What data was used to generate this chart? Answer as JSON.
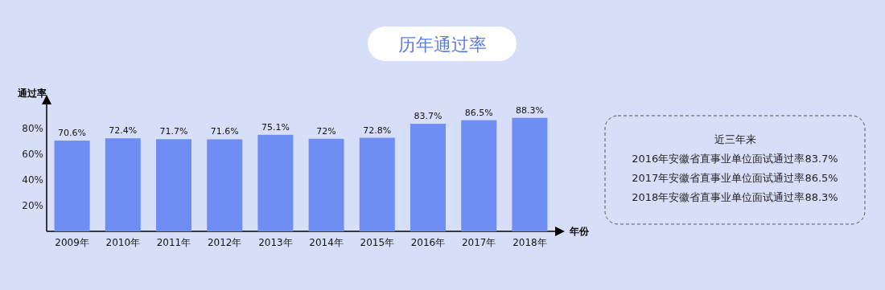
{
  "chart_data": {
    "type": "bar",
    "title": "历年通过率",
    "ylabel": "通过率",
    "xlabel": "年份",
    "categories": [
      "2009年",
      "2010年",
      "2011年",
      "2012年",
      "2013年",
      "2014年",
      "2015年",
      "2016年",
      "2017年",
      "2018年"
    ],
    "values": [
      70.6,
      72.4,
      71.7,
      71.6,
      75.1,
      72,
      72.8,
      83.7,
      86.5,
      88.3
    ],
    "value_labels": [
      "70.6%",
      "72.4%",
      "71.7%",
      "71.6%",
      "75.1%",
      "72%",
      "72.8%",
      "83.7%",
      "86.5%",
      "88.3%"
    ],
    "color": "#6f8ef3",
    "ylim": [
      0,
      100
    ],
    "yticks": [
      {
        "value": 20,
        "label": "20%"
      },
      {
        "value": 40,
        "label": "40%"
      },
      {
        "value": 60,
        "label": "60%"
      },
      {
        "value": 80,
        "label": "80%"
      }
    ],
    "annotations": [
      "近三年来",
      "2016年安徽省直事业单位面试通过率83.7%",
      "2017年安徽省直事业单位面试通过率86.5%",
      "2018年安徽省直事业单位面试通过率88.3%"
    ]
  }
}
